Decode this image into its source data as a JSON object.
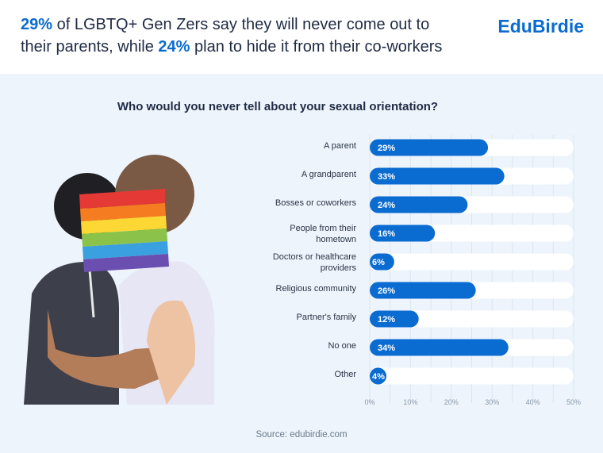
{
  "header": {
    "h1": "29%",
    "t1": " of LGBTQ+ Gen Zers say they will never come out to",
    "t2": "their parents, while ",
    "h2": "24%",
    "t3": " plan to hide it from their co-workers",
    "logo": "EduBirdie"
  },
  "source": "Source: edubirdie.com",
  "colors": {
    "bar": "#0a6bd1",
    "track": "#ffffff",
    "grid": "#dbe6f3"
  },
  "chart_data": {
    "type": "bar",
    "orientation": "horizontal",
    "title": "Who would you never tell about your sexual orientation?",
    "categories": [
      [
        "A parent"
      ],
      [
        "A grandparent"
      ],
      [
        "Bosses or coworkers"
      ],
      [
        "People from their",
        "hometown"
      ],
      [
        "Doctors or healthcare",
        "providers"
      ],
      [
        "Religious community"
      ],
      [
        "Partner's family"
      ],
      [
        "No one"
      ],
      [
        "Other"
      ]
    ],
    "values": [
      29,
      33,
      24,
      16,
      6,
      26,
      12,
      34,
      4
    ],
    "labels": [
      "29%",
      "33%",
      "24%",
      "16%",
      "6%",
      "26%",
      "12%",
      "34%",
      "4%"
    ],
    "xlim": [
      0,
      50
    ],
    "xticks": [
      "0%",
      "10%",
      "20%",
      "30%",
      "40%",
      "50%"
    ],
    "grid": true
  }
}
